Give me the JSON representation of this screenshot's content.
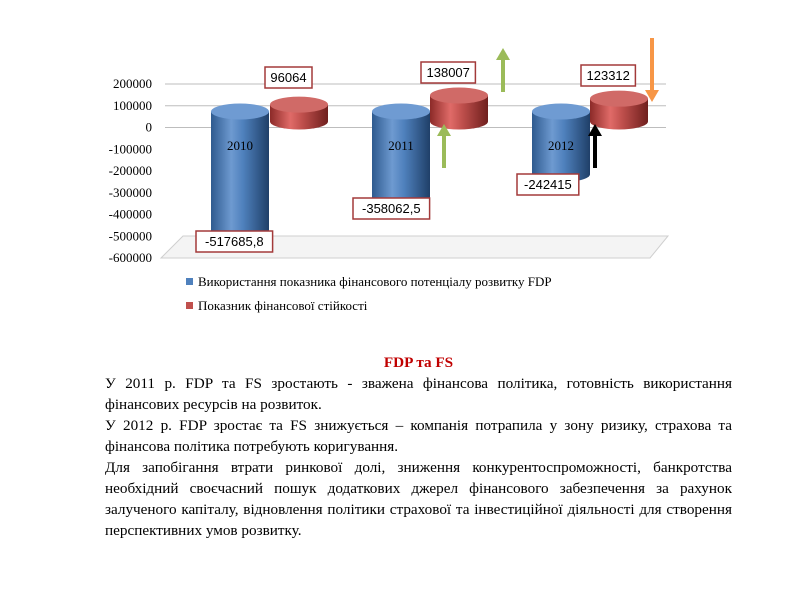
{
  "chart_data": {
    "type": "bar",
    "categories": [
      "2010",
      "2011",
      "2012"
    ],
    "series": [
      {
        "name": "Використання показника фінансового потенціалу розвитку FDP",
        "values": [
          -517685.8,
          -358062.5,
          -242415
        ],
        "labels": [
          "-517685,8",
          "-358062,5",
          "-242415"
        ],
        "color": "#4f81bd"
      },
      {
        "name": "Показник фінансової стійкості",
        "values": [
          96064,
          138007,
          123312
        ],
        "labels": [
          "96064",
          "138007",
          "123312"
        ],
        "color": "#c0504d"
      }
    ],
    "yticks": [
      "200000",
      "100000",
      "0",
      "-100000",
      "-200000",
      "-300000",
      "-400000",
      "-500000",
      "-600000"
    ],
    "ylim": [
      -600000,
      200000
    ],
    "legend": "bottom",
    "annotations": [
      {
        "type": "arrow",
        "direction": "up",
        "color": "#9bbb59",
        "category": "2011",
        "series": 0
      },
      {
        "type": "arrow",
        "direction": "up",
        "color": "#9bbb59",
        "category": "2011",
        "series": 1
      },
      {
        "type": "arrow",
        "direction": "up",
        "color": "#000000",
        "category": "2012",
        "series": 0
      },
      {
        "type": "arrow",
        "direction": "down",
        "color": "#f79646",
        "category": "2012",
        "series": 1
      }
    ]
  },
  "text": {
    "heading": "FDP та FS",
    "paragraphs": [
      "У 2011 р. FDP та FS зростають -  зважена фінансова політика, готовність використання фінансових ресурсів на розвиток.",
      "У 2012 р. FDP зростає та FS знижується – компанія потрапила у зону ризику, страхова та фінансова політика потребують коригування.",
      "Для запобігання втрати ринкової долі, зниження конкурентоспроможності, банкротства необхідний своєчасний пошук додаткових джерел фінансового забезпечення за рахунок залученого капіталу, відновлення політики страхової та інвестиційної діяльності для створення перспективних  умов розвитку."
    ]
  }
}
